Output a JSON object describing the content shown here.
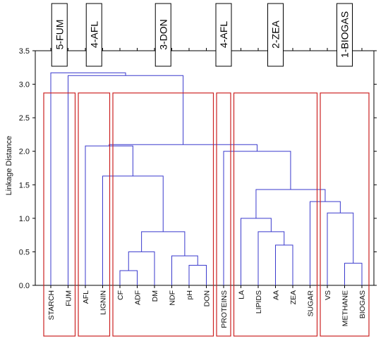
{
  "chart_data": {
    "type": "dendrogram",
    "title": "",
    "xlabel": "",
    "ylabel": "Linkage Distance",
    "ylim": [
      0,
      3.5
    ],
    "yticks": [
      "0.0",
      "0.5",
      "1.0",
      "1.5",
      "2.0",
      "2.5",
      "3.0",
      "3.5"
    ],
    "leaves": [
      "STARCH",
      "FUM",
      "AFL",
      "LIGNIN",
      "CF",
      "ADF",
      "DM",
      "NDF",
      "pH",
      "DON",
      "PROTEINS",
      "LA",
      "LIPIDS",
      "AA",
      "ZEA",
      "SUGAR",
      "VS",
      "METHANE",
      "BIOGAS"
    ],
    "merges": [
      {
        "a": "CF",
        "b": "ADF",
        "height": 0.22
      },
      {
        "a": "pH",
        "b": "DON",
        "height": 0.3
      },
      {
        "a": "BIOGAS",
        "b": "METHANE",
        "height": 0.33
      },
      {
        "a": "CF+ADF",
        "b": "DM",
        "height": 0.5
      },
      {
        "a": "AA",
        "b": "ZEA",
        "height": 0.6
      },
      {
        "a": "NDF",
        "b": "pH+DON",
        "height": 0.44
      },
      {
        "a": "CF+ADF+DM",
        "b": "NDF+pH+DON",
        "height": 0.8
      },
      {
        "a": "LIPIDS",
        "b": "AA+ZEA",
        "height": 0.8
      },
      {
        "a": "LA",
        "b": "LIPIDS+AA+ZEA",
        "height": 1.0
      },
      {
        "a": "VS",
        "b": "METHANE+BIOGAS",
        "height": 1.08
      },
      {
        "a": "SUGAR",
        "b": "VS+METHANE+BIOGAS",
        "height": 1.25
      },
      {
        "a": "LA..ZEA",
        "b": "SUGAR..BIOGAS",
        "height": 1.43
      },
      {
        "a": "LIGNIN",
        "b": "CF..DON",
        "height": 1.63
      },
      {
        "a": "PROTEINS",
        "b": "LA..BIOGAS",
        "height": 2.0
      },
      {
        "a": "AFL",
        "b": "LIGNIN..DON",
        "height": 2.08
      },
      {
        "a": "AFL..DON",
        "b": "PROTEINS..BIOGAS",
        "height": 2.1
      },
      {
        "a": "FUM",
        "b": "AFL..BIOGAS",
        "height": 3.13
      },
      {
        "a": "STARCH",
        "b": "FUM..BIOGAS",
        "height": 3.17
      }
    ],
    "groups": [
      {
        "label": "5-FUM",
        "leaves": [
          "STARCH",
          "FUM"
        ]
      },
      {
        "label": "4-AFL",
        "leaves": [
          "AFL",
          "LIGNIN"
        ]
      },
      {
        "label": "3-DON",
        "leaves": [
          "CF",
          "ADF",
          "DM",
          "NDF",
          "pH",
          "DON"
        ]
      },
      {
        "label": "4-AFL",
        "leaves": [
          "PROTEINS"
        ]
      },
      {
        "label": "2-ZEA",
        "leaves": [
          "LA",
          "LIPIDS",
          "AA",
          "ZEA",
          "SUGAR"
        ]
      },
      {
        "label": "1-BIOGAS",
        "leaves": [
          "VS",
          "METHANE",
          "BIOGAS"
        ]
      }
    ],
    "grid": false,
    "colors": {
      "links": "#3a3acd",
      "group_boxes": "#cc2222",
      "axis": "#000000"
    }
  }
}
